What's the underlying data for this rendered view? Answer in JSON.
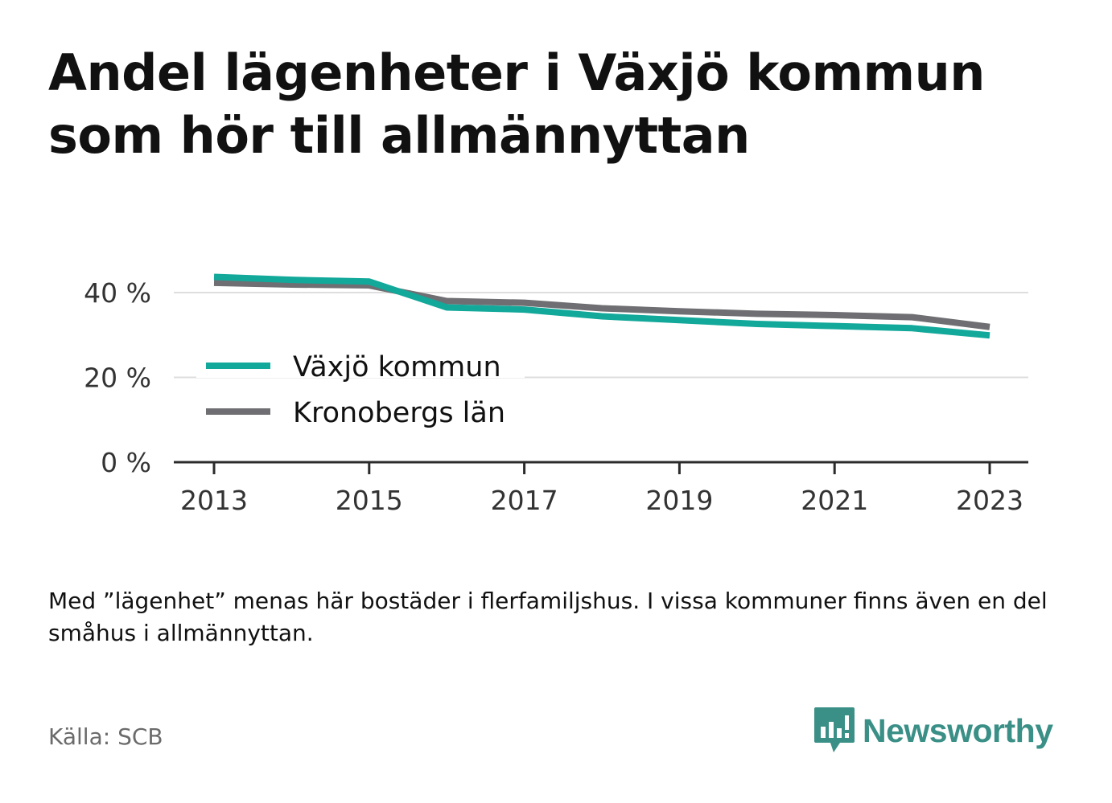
{
  "title": "Andel lägenheter i Växjö kommun som hör till allmännyttan",
  "note": "Med ”lägenhet” menas här bostäder i flerfamiljshus. I vissa kommuner finns även en del småhus i allmännyttan.",
  "source": "Källa: SCB",
  "brand": {
    "name": "Newsworthy",
    "color": "#3a8f86",
    "icon": "bar-chart-speech-bubble-icon"
  },
  "chart_data": {
    "type": "line",
    "x": [
      2013,
      2014,
      2015,
      2016,
      2017,
      2018,
      2019,
      2020,
      2021,
      2022,
      2023
    ],
    "x_tick_labels": [
      "2013",
      "2015",
      "2017",
      "2019",
      "2021",
      "2023"
    ],
    "y_tick_labels": [
      "0 %",
      "20 %",
      "40 %"
    ],
    "ylim": [
      0,
      50
    ],
    "grid": true,
    "legend_position": "left-middle",
    "series": [
      {
        "name": "Växjö kommun",
        "color": "#12a89a",
        "values": [
          43.7,
          43.0,
          42.6,
          36.5,
          36.0,
          34.4,
          33.5,
          32.6,
          32.1,
          31.6,
          29.9
        ]
      },
      {
        "name": "Kronobergs län",
        "color": "#6f6f73",
        "values": [
          42.3,
          41.9,
          41.7,
          38.0,
          37.6,
          36.3,
          35.6,
          35.0,
          34.7,
          34.2,
          31.9
        ]
      }
    ]
  }
}
